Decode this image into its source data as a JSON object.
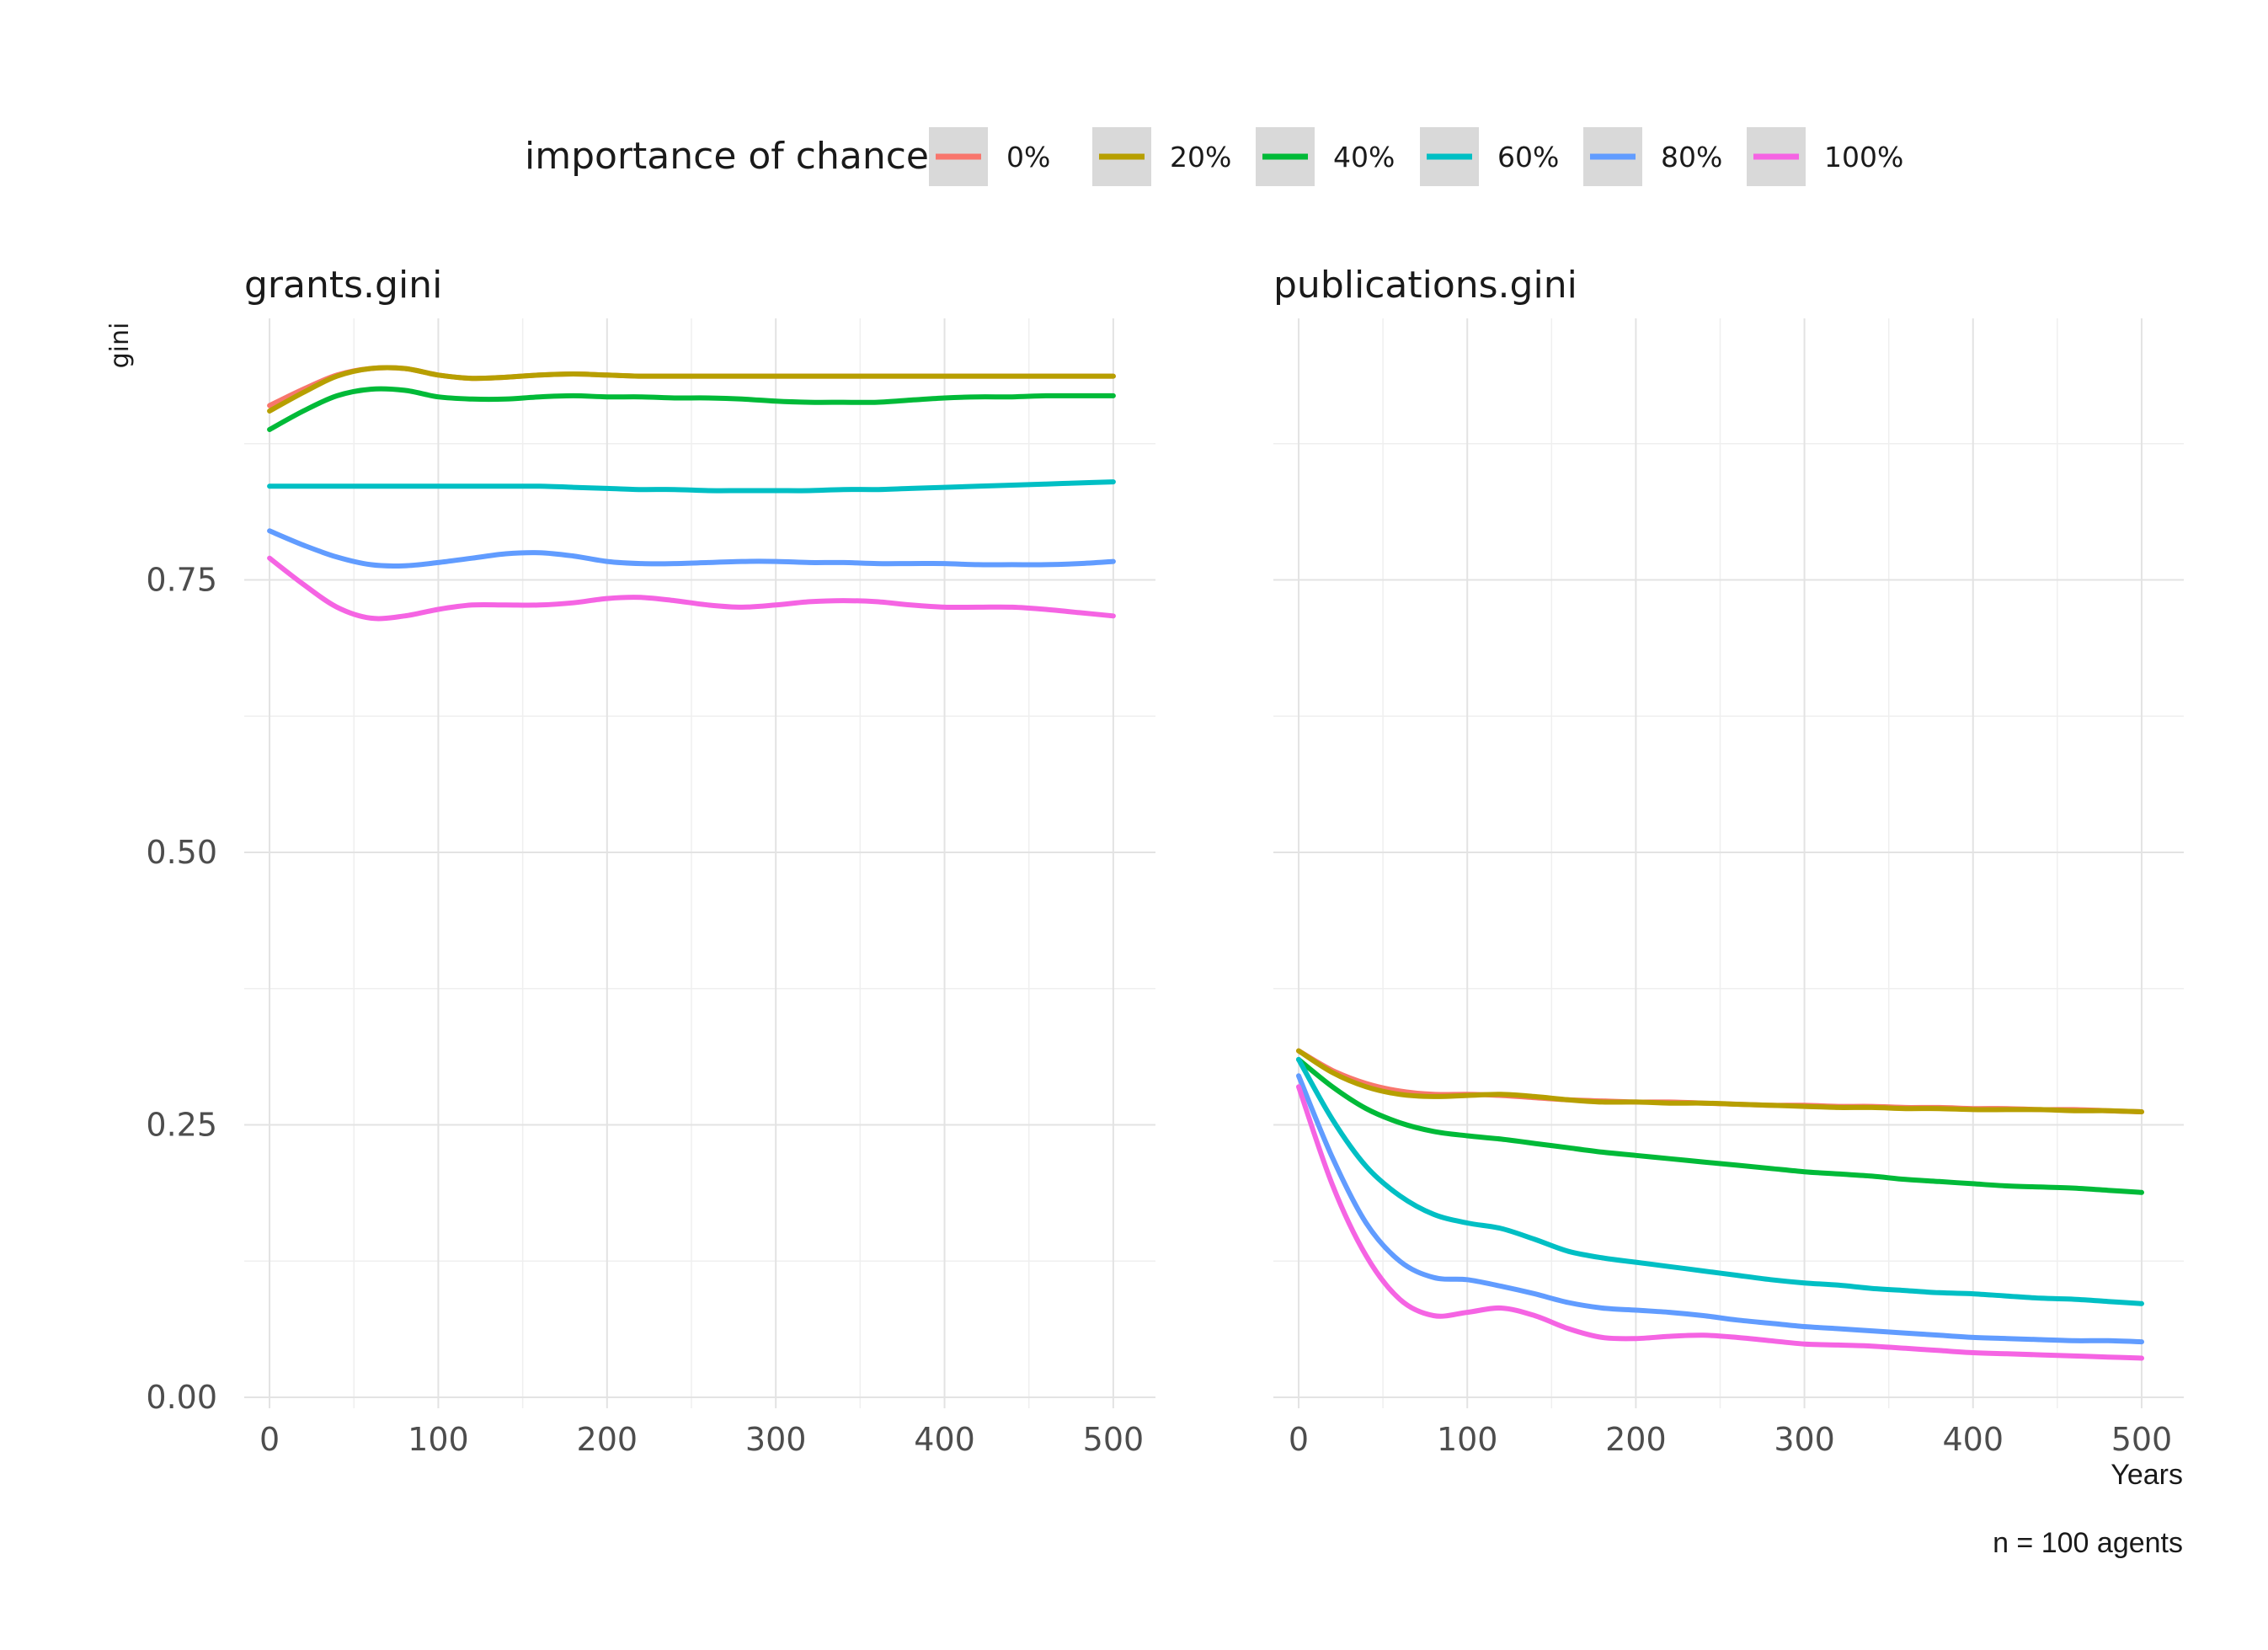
{
  "legend": {
    "title": "importance of chance",
    "entries": [
      {
        "label": "0%",
        "color": "#F8766D"
      },
      {
        "label": "20%",
        "color": "#B79F00"
      },
      {
        "label": "40%",
        "color": "#00BA38"
      },
      {
        "label": "60%",
        "color": "#00BFC4"
      },
      {
        "label": "80%",
        "color": "#619CFF"
      },
      {
        "label": "100%",
        "color": "#F564E3"
      }
    ]
  },
  "axes": {
    "ylabel": "gini",
    "xlabel": "Years"
  },
  "caption": "n = 100 agents",
  "chart_data": [
    {
      "type": "line",
      "title": "grants.gini",
      "xlim": [
        -15,
        525
      ],
      "ylim": [
        -0.01,
        0.99
      ],
      "x_ticks": [
        "0",
        "100",
        "200",
        "300",
        "400",
        "500"
      ],
      "y_ticks": [
        "0.00",
        "0.25",
        "0.50",
        "0.75"
      ],
      "x": [
        0,
        20,
        40,
        60,
        80,
        100,
        120,
        140,
        160,
        180,
        200,
        220,
        240,
        260,
        280,
        300,
        320,
        340,
        360,
        380,
        400,
        420,
        440,
        460,
        480,
        500
      ],
      "series": [
        {
          "name": "0%",
          "values": [
            0.91,
            0.925,
            0.938,
            0.944,
            0.944,
            0.938,
            0.935,
            0.936,
            0.938,
            0.939,
            0.938,
            0.937,
            0.937,
            0.937,
            0.937,
            0.937,
            0.937,
            0.937,
            0.937,
            0.937,
            0.937,
            0.937,
            0.937,
            0.937,
            0.937,
            0.937
          ]
        },
        {
          "name": "20%",
          "values": [
            0.905,
            0.922,
            0.937,
            0.944,
            0.944,
            0.938,
            0.935,
            0.936,
            0.938,
            0.939,
            0.938,
            0.937,
            0.937,
            0.937,
            0.937,
            0.937,
            0.937,
            0.937,
            0.937,
            0.937,
            0.937,
            0.937,
            0.937,
            0.937,
            0.937,
            0.937
          ]
        },
        {
          "name": "40%",
          "values": [
            0.888,
            0.905,
            0.919,
            0.925,
            0.924,
            0.918,
            0.916,
            0.916,
            0.918,
            0.919,
            0.918,
            0.918,
            0.917,
            0.917,
            0.916,
            0.914,
            0.913,
            0.913,
            0.913,
            0.915,
            0.917,
            0.918,
            0.918,
            0.919,
            0.919,
            0.919
          ]
        },
        {
          "name": "60%",
          "values": [
            0.836,
            0.836,
            0.836,
            0.836,
            0.836,
            0.836,
            0.836,
            0.836,
            0.836,
            0.835,
            0.834,
            0.833,
            0.833,
            0.832,
            0.832,
            0.832,
            0.832,
            0.833,
            0.833,
            0.834,
            0.835,
            0.836,
            0.837,
            0.838,
            0.839,
            0.84
          ]
        },
        {
          "name": "80%",
          "values": [
            0.795,
            0.782,
            0.771,
            0.764,
            0.763,
            0.766,
            0.77,
            0.774,
            0.775,
            0.772,
            0.767,
            0.765,
            0.765,
            0.766,
            0.767,
            0.767,
            0.766,
            0.766,
            0.765,
            0.765,
            0.765,
            0.764,
            0.764,
            0.764,
            0.765,
            0.767
          ]
        },
        {
          "name": "100%",
          "values": [
            0.77,
            0.746,
            0.725,
            0.715,
            0.717,
            0.723,
            0.727,
            0.727,
            0.727,
            0.729,
            0.733,
            0.734,
            0.731,
            0.727,
            0.725,
            0.727,
            0.73,
            0.731,
            0.73,
            0.727,
            0.725,
            0.725,
            0.725,
            0.723,
            0.72,
            0.717
          ]
        }
      ]
    },
    {
      "type": "line",
      "title": "publications.gini",
      "xlim": [
        -15,
        525
      ],
      "ylim": [
        -0.01,
        0.99
      ],
      "x_ticks": [
        "0",
        "100",
        "200",
        "300",
        "400",
        "500"
      ],
      "y_ticks": [],
      "x": [
        0,
        20,
        40,
        60,
        80,
        100,
        120,
        140,
        160,
        180,
        200,
        220,
        240,
        260,
        280,
        300,
        320,
        340,
        360,
        380,
        400,
        420,
        440,
        460,
        480,
        500
      ],
      "series": [
        {
          "name": "0%",
          "values": [
            0.318,
            0.3,
            0.288,
            0.281,
            0.278,
            0.278,
            0.277,
            0.275,
            0.273,
            0.272,
            0.271,
            0.271,
            0.27,
            0.269,
            0.268,
            0.268,
            0.267,
            0.267,
            0.266,
            0.266,
            0.265,
            0.265,
            0.264,
            0.264,
            0.263,
            0.262
          ]
        },
        {
          "name": "20%",
          "values": [
            0.318,
            0.298,
            0.285,
            0.278,
            0.276,
            0.277,
            0.278,
            0.276,
            0.273,
            0.271,
            0.271,
            0.27,
            0.27,
            0.269,
            0.268,
            0.267,
            0.266,
            0.266,
            0.265,
            0.265,
            0.264,
            0.264,
            0.264,
            0.263,
            0.263,
            0.262
          ]
        },
        {
          "name": "40%",
          "values": [
            0.31,
            0.285,
            0.265,
            0.252,
            0.244,
            0.24,
            0.237,
            0.233,
            0.229,
            0.225,
            0.222,
            0.219,
            0.216,
            0.213,
            0.21,
            0.207,
            0.205,
            0.203,
            0.2,
            0.198,
            0.196,
            0.194,
            0.193,
            0.192,
            0.19,
            0.188
          ]
        },
        {
          "name": "60%",
          "values": [
            0.31,
            0.255,
            0.212,
            0.185,
            0.168,
            0.16,
            0.155,
            0.145,
            0.134,
            0.128,
            0.124,
            0.12,
            0.116,
            0.112,
            0.108,
            0.105,
            0.103,
            0.1,
            0.098,
            0.096,
            0.095,
            0.093,
            0.091,
            0.09,
            0.088,
            0.086
          ]
        },
        {
          "name": "80%",
          "values": [
            0.295,
            0.22,
            0.16,
            0.125,
            0.11,
            0.108,
            0.102,
            0.095,
            0.087,
            0.082,
            0.08,
            0.078,
            0.075,
            0.071,
            0.068,
            0.065,
            0.063,
            0.061,
            0.059,
            0.057,
            0.055,
            0.054,
            0.053,
            0.052,
            0.052,
            0.051
          ]
        },
        {
          "name": "100%",
          "values": [
            0.285,
            0.195,
            0.13,
            0.09,
            0.075,
            0.078,
            0.082,
            0.075,
            0.063,
            0.055,
            0.054,
            0.056,
            0.057,
            0.055,
            0.052,
            0.049,
            0.048,
            0.047,
            0.045,
            0.043,
            0.041,
            0.04,
            0.039,
            0.038,
            0.037,
            0.036
          ]
        }
      ]
    }
  ]
}
